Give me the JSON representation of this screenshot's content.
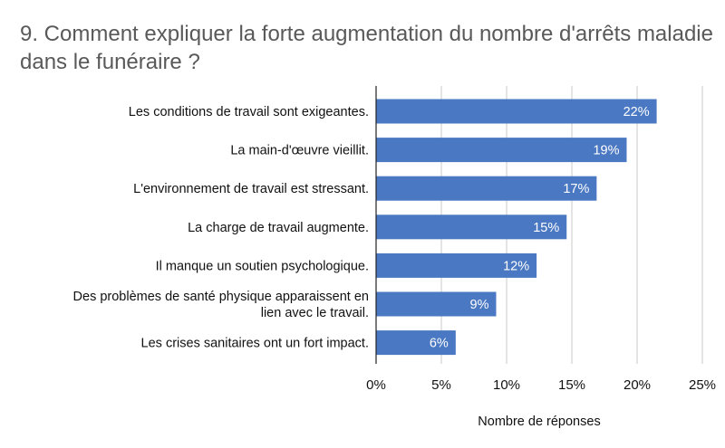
{
  "chart_data": {
    "type": "bar",
    "orientation": "horizontal",
    "title": "9. Comment expliquer la forte augmentation du nombre d'arrêts maladie dans le funéraire ?",
    "xlabel": "Nombre de réponses",
    "ylabel": "",
    "categories": [
      [
        "Les conditions de travail sont exigeantes."
      ],
      [
        "La main-d'œuvre vieillit."
      ],
      [
        "L'environnement de travail est stressant."
      ],
      [
        "La charge de travail augmente."
      ],
      [
        "Il manque un soutien psychologique."
      ],
      [
        "Des problèmes de santé physique apparaissent en",
        "lien avec le travail."
      ],
      [
        "Les crises sanitaires ont un fort impact."
      ]
    ],
    "values": [
      21.5,
      19.2,
      16.9,
      14.6,
      12.3,
      9.2,
      6.1
    ],
    "data_labels": [
      "22%",
      "19%",
      "17%",
      "15%",
      "12%",
      "9%",
      "6%"
    ],
    "xlim": [
      0,
      25
    ],
    "xticks": [
      0,
      5,
      10,
      15,
      20,
      25
    ],
    "xtick_labels": [
      "0%",
      "5%",
      "10%",
      "15%",
      "20%",
      "25%"
    ],
    "grid": "vertical",
    "legend": "none",
    "bar_color": "#4a78c2",
    "grid_color": "#c8c8c8",
    "axis_color": "#222222"
  }
}
